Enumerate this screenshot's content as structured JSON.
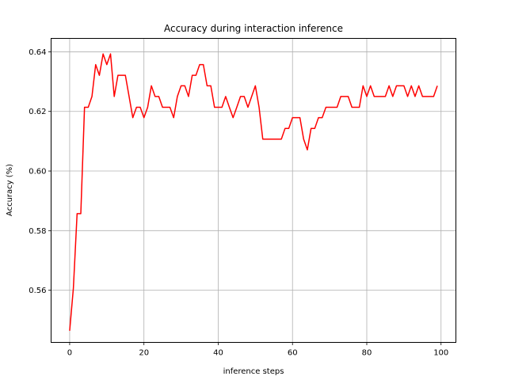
{
  "chart_data": {
    "type": "line",
    "title": "Accuracy during interaction inference",
    "xlabel": "inference steps",
    "ylabel": "Accuracy (%)",
    "xlim": [
      -5,
      104
    ],
    "ylim": [
      0.5425,
      0.6445
    ],
    "xticks": [
      0,
      20,
      40,
      60,
      80,
      100
    ],
    "yticks": [
      0.56,
      0.58,
      0.6,
      0.62,
      0.64
    ],
    "xtick_labels": [
      "0",
      "20",
      "40",
      "60",
      "80",
      "100"
    ],
    "ytick_labels": [
      "0.56",
      "0.58",
      "0.60",
      "0.62",
      "0.64"
    ],
    "grid": true,
    "series": [
      {
        "color": "#ff0000",
        "x": [
          0,
          1,
          2,
          3,
          4,
          5,
          6,
          7,
          8,
          9,
          10,
          11,
          12,
          13,
          14,
          15,
          16,
          17,
          18,
          19,
          20,
          21,
          22,
          23,
          24,
          25,
          26,
          27,
          28,
          29,
          30,
          31,
          32,
          33,
          34,
          35,
          36,
          37,
          38,
          39,
          40,
          41,
          42,
          43,
          44,
          45,
          46,
          47,
          48,
          49,
          50,
          51,
          52,
          53,
          54,
          55,
          56,
          57,
          58,
          59,
          60,
          61,
          62,
          63,
          64,
          65,
          66,
          67,
          68,
          69,
          70,
          71,
          72,
          73,
          74,
          75,
          76,
          77,
          78,
          79,
          80,
          81,
          82,
          83,
          84,
          85,
          86,
          87,
          88,
          89,
          90,
          91,
          92,
          93,
          94,
          95,
          96,
          97,
          98,
          99
        ],
        "y": [
          0.5464,
          0.5607,
          0.5857,
          0.5857,
          0.6214,
          0.6214,
          0.625,
          0.6357,
          0.6321,
          0.6393,
          0.6357,
          0.6393,
          0.625,
          0.6321,
          0.6321,
          0.6321,
          0.625,
          0.6179,
          0.6214,
          0.6214,
          0.6179,
          0.6214,
          0.6286,
          0.625,
          0.625,
          0.6214,
          0.6214,
          0.6214,
          0.6179,
          0.625,
          0.6286,
          0.6286,
          0.625,
          0.6321,
          0.6321,
          0.6357,
          0.6357,
          0.6286,
          0.6286,
          0.6214,
          0.6214,
          0.6214,
          0.625,
          0.6214,
          0.6179,
          0.6214,
          0.625,
          0.625,
          0.6214,
          0.625,
          0.6286,
          0.6214,
          0.6107,
          0.6107,
          0.6107,
          0.6107,
          0.6107,
          0.6107,
          0.6143,
          0.6143,
          0.6179,
          0.6179,
          0.6179,
          0.6107,
          0.6071,
          0.6143,
          0.6143,
          0.6179,
          0.6179,
          0.6214,
          0.6214,
          0.6214,
          0.6214,
          0.625,
          0.625,
          0.625,
          0.6214,
          0.6214,
          0.6214,
          0.6286,
          0.625,
          0.6286,
          0.625,
          0.625,
          0.625,
          0.625,
          0.6286,
          0.625,
          0.6286,
          0.6286,
          0.6286,
          0.625,
          0.6286,
          0.625,
          0.6286,
          0.625,
          0.625,
          0.625,
          0.625,
          0.6286
        ]
      }
    ]
  }
}
